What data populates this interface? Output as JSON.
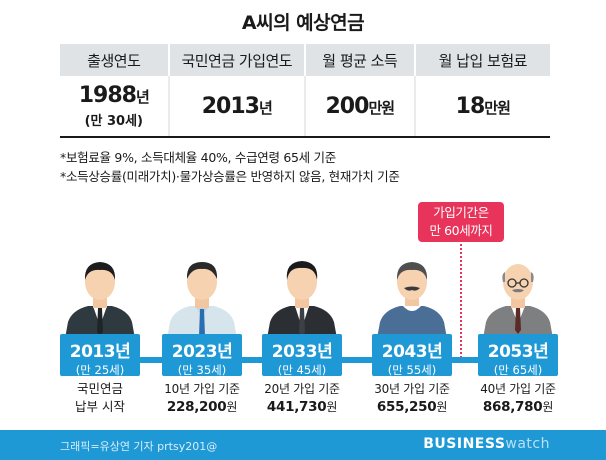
{
  "title": "A씨의 예상연금",
  "table": {
    "headers": [
      "출생연도",
      "국민연금 가입연도",
      "월 평균 소득",
      "월 납입 보험료"
    ],
    "birth": {
      "year": "1988",
      "unit": "년",
      "age": "(만 30세)"
    },
    "join_year": {
      "value": "2013",
      "unit": "년"
    },
    "income": {
      "value": "200",
      "unit": "만원"
    },
    "premium": {
      "value": "18",
      "unit": "만원"
    }
  },
  "notes": [
    "*보험료율 9%, 소득대체율 40%, 수급연령 65세 기준",
    "*소득상승률(미래가치)·물가상승률은 반영하지 않음, 현재가치 기준"
  ],
  "callout": {
    "line1": "가입기간은",
    "line2": "만 60세까지"
  },
  "timeline": [
    {
      "year": "2013년",
      "age": "(만 25세)",
      "caption1": "국민연금",
      "caption2": "납부 시작"
    },
    {
      "year": "2023년",
      "age": "(만 35세)",
      "caption1": "10년 가입 기준",
      "amount": "228,200",
      "won": "원"
    },
    {
      "year": "2033년",
      "age": "(만 45세)",
      "caption1": "20년 가입 기준",
      "amount": "441,730",
      "won": "원"
    },
    {
      "year": "2043년",
      "age": "(만 55세)",
      "caption1": "30년 가입 기준",
      "amount": "655,250",
      "won": "원"
    },
    {
      "year": "2053년",
      "age": "(만 65세)",
      "caption1": "40년 가입 기준",
      "amount": "868,780",
      "won": "원"
    }
  ],
  "footer": {
    "credit": "그래픽=유상연 기자 prtsy201@",
    "logo_bold": "BUSINESS",
    "logo_light": "watch"
  },
  "colors": {
    "accent": "#1f98d6",
    "callout": "#e8335a"
  }
}
